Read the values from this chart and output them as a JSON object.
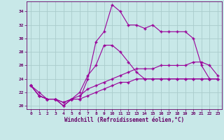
{
  "bg_color": "#c8e8e8",
  "line_color": "#990099",
  "grid_color": "#aacccc",
  "text_color": "#660066",
  "xlim": [
    -0.5,
    23.5
  ],
  "ylim": [
    19.5,
    35.5
  ],
  "xticks": [
    0,
    1,
    2,
    3,
    4,
    5,
    6,
    7,
    8,
    9,
    10,
    11,
    12,
    13,
    14,
    15,
    16,
    17,
    18,
    19,
    20,
    21,
    22,
    23
  ],
  "yticks": [
    20,
    22,
    24,
    26,
    28,
    30,
    32,
    34
  ],
  "xlabel": "Windchill (Refroidissement éolien,°C)",
  "lines": [
    [
      23,
      22,
      21,
      21,
      20,
      21,
      21,
      24,
      29.5,
      31,
      35,
      34,
      32,
      32,
      31.5,
      32,
      31,
      31,
      31,
      31,
      30,
      26,
      24,
      24
    ],
    [
      23,
      21.5,
      21,
      21,
      20,
      21,
      22,
      24.5,
      26,
      29,
      29,
      28,
      26.5,
      25,
      24,
      24,
      24,
      24,
      24,
      24,
      24,
      24,
      24,
      24
    ],
    [
      23,
      21.5,
      21,
      21,
      20.5,
      21,
      21.5,
      22.5,
      23,
      23.5,
      24,
      24.5,
      25,
      25.5,
      25.5,
      25.5,
      26,
      26,
      26,
      26,
      26.5,
      26.5,
      26,
      24.5
    ],
    [
      23,
      21.5,
      21,
      21,
      20.5,
      21,
      21,
      21.5,
      22,
      22.5,
      23,
      23.5,
      23.5,
      24,
      24,
      24,
      24,
      24,
      24,
      24,
      24,
      24,
      24,
      24
    ]
  ]
}
